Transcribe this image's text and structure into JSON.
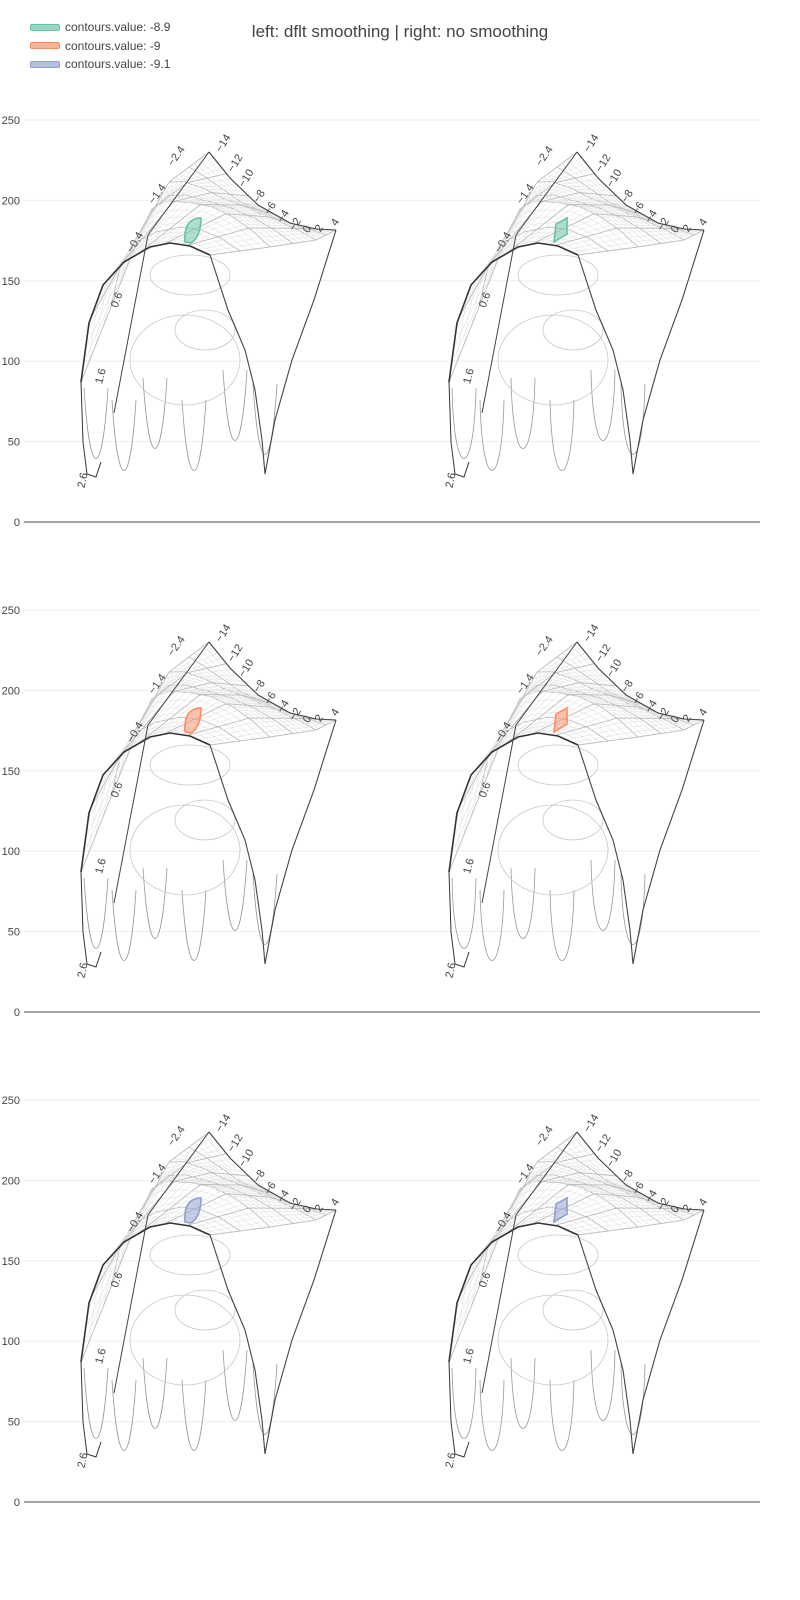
{
  "figure": {
    "title": "left: dflt smoothing | right: no smoothing"
  },
  "legend": [
    {
      "label": "contours.value: -8.9",
      "color": "#66c2a5"
    },
    {
      "label": "contours.value: -9",
      "color": "#fc8d62"
    },
    {
      "label": "contours.value: -9.1",
      "color": "#8da0cb"
    }
  ],
  "chart_data": {
    "type": "carpet-contour",
    "title": "left: dflt smoothing | right: no smoothing",
    "y_axis": {
      "ticks": [
        0,
        50,
        100,
        150,
        200,
        250
      ],
      "range": [
        0,
        250
      ]
    },
    "a_axis_ticks": [
      "−0.4",
      "0.6",
      "1.6",
      "2.6",
      "−1.4",
      "−2.4"
    ],
    "b_axis_ticks": [
      "−14",
      "−12",
      "−10",
      "−8",
      "−6",
      "−4",
      "−2",
      "0",
      "2",
      "4"
    ],
    "panels": [
      {
        "row": 1,
        "col": 1,
        "smoothing": "default",
        "contour_value": -8.9,
        "color": "#66c2a5"
      },
      {
        "row": 1,
        "col": 2,
        "smoothing": "none",
        "contour_value": -8.9,
        "color": "#66c2a5"
      },
      {
        "row": 2,
        "col": 1,
        "smoothing": "default",
        "contour_value": -9,
        "color": "#fc8d62"
      },
      {
        "row": 2,
        "col": 2,
        "smoothing": "none",
        "contour_value": -9,
        "color": "#fc8d62"
      },
      {
        "row": 3,
        "col": 1,
        "smoothing": "default",
        "contour_value": -9.1,
        "color": "#8da0cb"
      },
      {
        "row": 3,
        "col": 2,
        "smoothing": "none",
        "contour_value": -9.1,
        "color": "#8da0cb"
      }
    ]
  }
}
